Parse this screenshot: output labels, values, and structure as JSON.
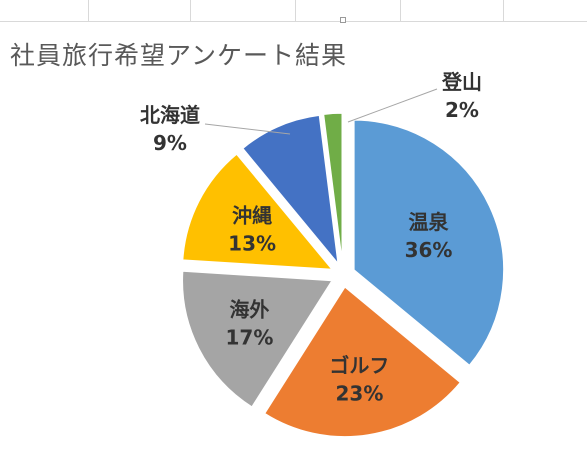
{
  "chart_data": {
    "type": "pie",
    "title": "社員旅行希望アンケート結果",
    "categories": [
      "温泉",
      "ゴルフ",
      "海外",
      "沖縄",
      "北海道",
      "登山"
    ],
    "values": [
      36,
      23,
      17,
      13,
      9,
      2
    ],
    "percent_labels": [
      "36%",
      "23%",
      "17%",
      "13%",
      "9%",
      "2%"
    ],
    "colors": [
      "#5b9bd5",
      "#ed7d31",
      "#a5a5a5",
      "#ffc000",
      "#4472c4",
      "#70ad47"
    ],
    "data_labels": "category-and-percent",
    "exploded": true,
    "legend": "none"
  }
}
